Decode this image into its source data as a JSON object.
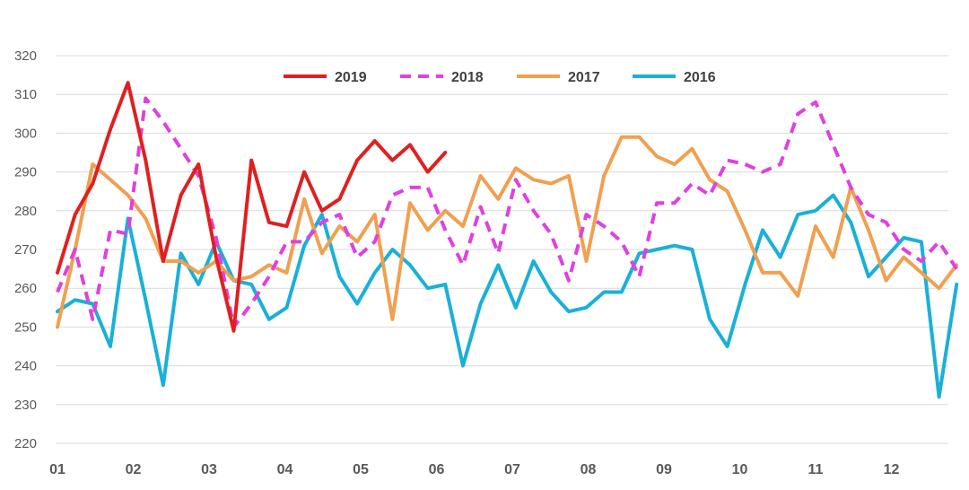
{
  "chart_data": {
    "type": "line",
    "title": "",
    "xlabel": "",
    "ylabel": "",
    "ylim": [
      220,
      320
    ],
    "yticks": [
      220,
      230,
      240,
      250,
      260,
      270,
      280,
      290,
      300,
      310,
      320
    ],
    "grid": true,
    "legend_position": "top-center",
    "x_tick_labels": [
      "01",
      "02",
      "03",
      "04",
      "05",
      "06",
      "07",
      "08",
      "09",
      "10",
      "11",
      "12"
    ],
    "points_per_month": 4.3,
    "series": [
      {
        "name": "2019",
        "color": "#e02020",
        "dash": "solid",
        "values": [
          264,
          279,
          287,
          301,
          313,
          293,
          267,
          284,
          292,
          268,
          249,
          293,
          277,
          276,
          290,
          280,
          283,
          293,
          298,
          293,
          297,
          290,
          295
        ]
      },
      {
        "name": "2018",
        "color": "#e040e0",
        "dash": "dashed",
        "values": [
          259,
          270,
          252,
          275,
          274,
          309,
          303,
          296,
          289,
          273,
          250,
          256,
          263,
          272,
          272,
          277,
          279,
          268,
          272,
          284,
          286,
          286,
          275,
          266,
          281,
          269,
          288,
          280,
          274,
          262,
          279,
          276,
          272,
          263,
          282,
          282,
          287,
          284,
          293,
          292,
          290,
          292,
          305,
          308,
          297,
          286,
          279,
          277,
          270,
          267,
          272,
          265
        ]
      },
      {
        "name": "2017",
        "color": "#f0a050",
        "dash": "solid",
        "values": [
          250,
          270,
          292,
          288,
          284,
          278,
          267,
          267,
          264,
          267,
          262,
          263,
          266,
          264,
          283,
          269,
          276,
          272,
          279,
          252,
          282,
          275,
          280,
          276,
          289,
          283,
          291,
          288,
          287,
          289,
          267,
          289,
          299,
          299,
          294,
          292,
          296,
          288,
          285,
          275,
          264,
          264,
          258,
          276,
          268,
          286,
          275,
          262,
          268,
          264,
          260,
          266
        ]
      },
      {
        "name": "2016",
        "color": "#1ab0d8",
        "dash": "solid",
        "values": [
          254,
          257,
          256,
          245,
          278,
          257,
          235,
          269,
          261,
          272,
          262,
          261,
          252,
          255,
          271,
          279,
          263,
          256,
          264,
          270,
          266,
          260,
          261,
          240,
          256,
          266,
          255,
          267,
          259,
          254,
          255,
          259,
          259,
          269,
          270,
          271,
          270,
          252,
          245,
          261,
          275,
          268,
          279,
          280,
          284,
          277,
          263,
          268,
          273,
          272,
          232,
          261
        ]
      }
    ]
  }
}
